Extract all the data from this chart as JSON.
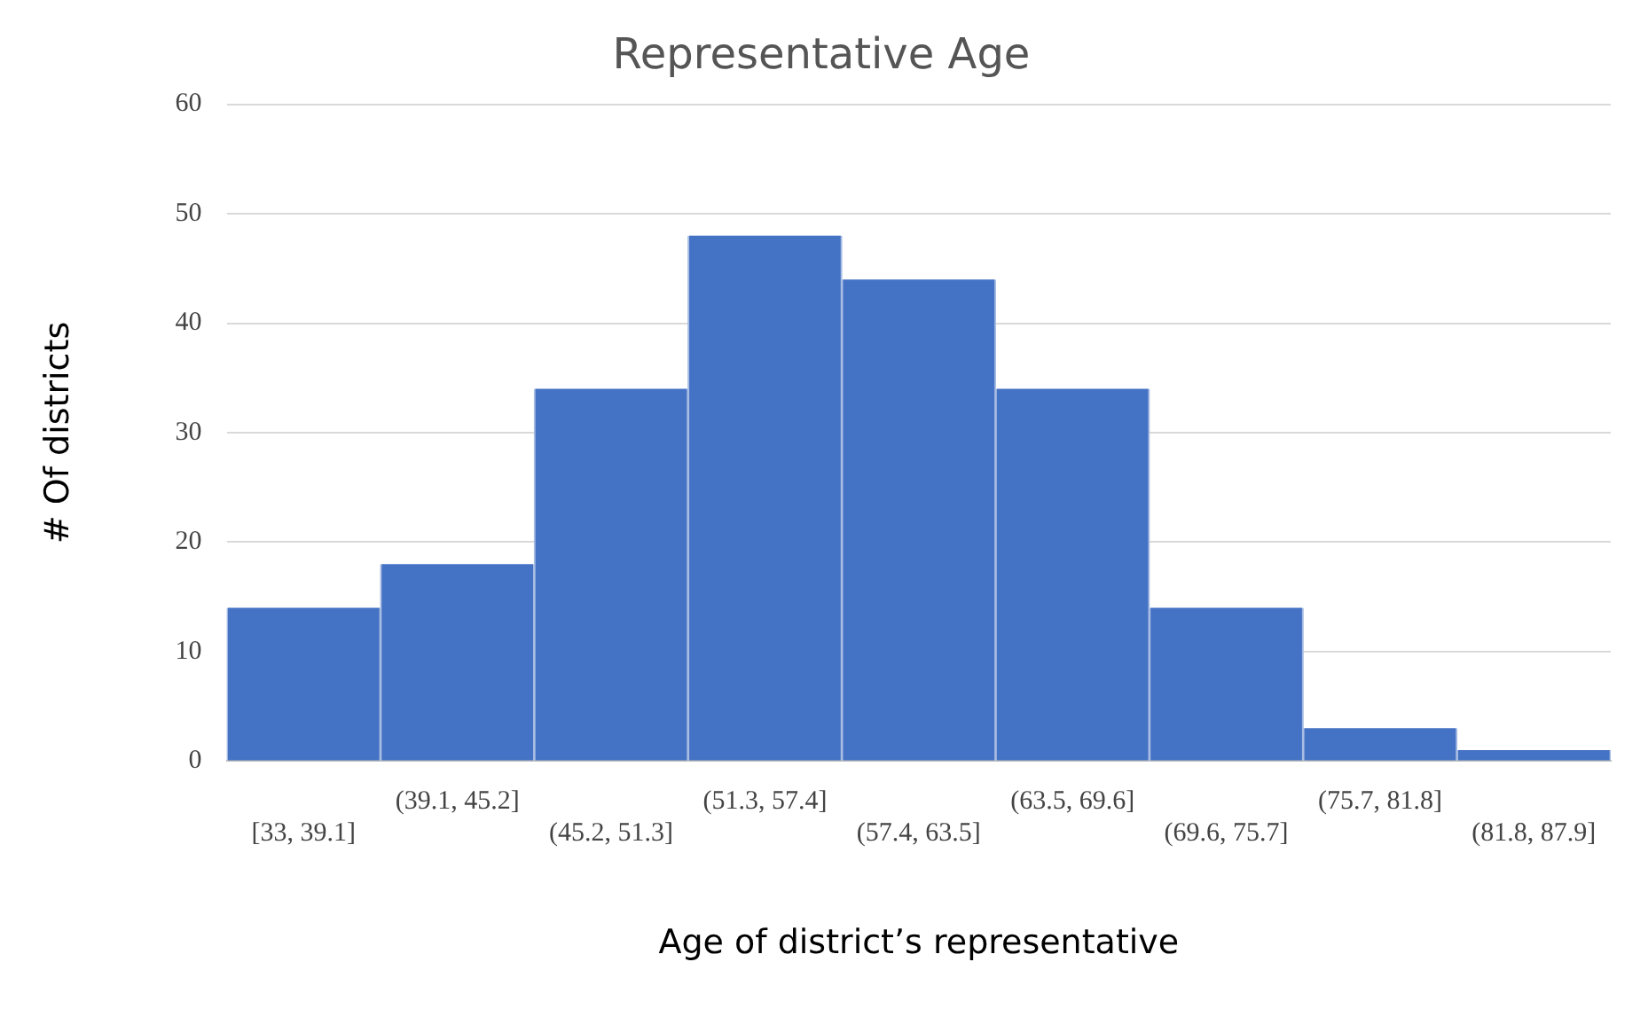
{
  "chart_data": {
    "type": "bar",
    "title": "Representative Age",
    "xlabel": "Age of district’s representative",
    "ylabel": "# Of districts",
    "categories": [
      "[33, 39.1]",
      "(39.1, 45.2]",
      "(45.2, 51.3]",
      "(51.3, 57.4]",
      "(57.4, 63.5]",
      "(63.5, 69.6]",
      "(69.6, 75.7]",
      "(75.7, 81.8]",
      "(81.8, 87.9]"
    ],
    "values": [
      14,
      18,
      34,
      48,
      44,
      34,
      14,
      3,
      1
    ],
    "color": "#4472c4",
    "ylim": [
      0,
      60
    ],
    "yticks": [
      0,
      10,
      20,
      30,
      40,
      50,
      60
    ],
    "grid": "y",
    "legend": false
  }
}
